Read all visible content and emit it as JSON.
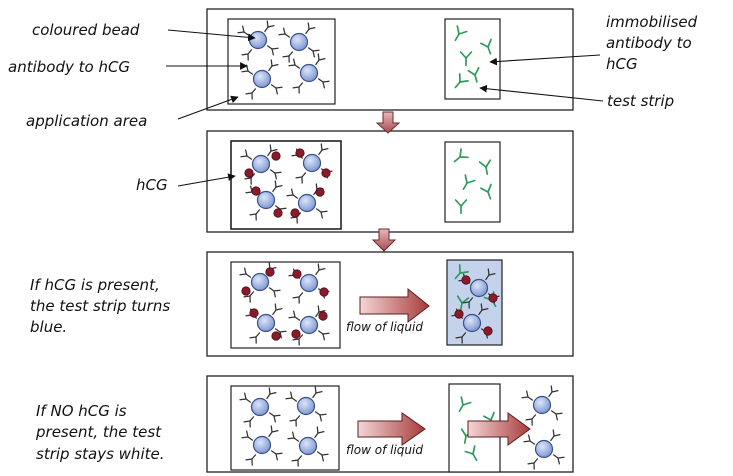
{
  "labels": {
    "coloured_bead": "coloured bead",
    "antibody_to_hcg": "antibody to hCG",
    "application_area": "application area",
    "immobilised_line1": "immobilised",
    "immobilised_line2": "antibody to",
    "immobilised_line3": "hCG",
    "test_strip": "test strip",
    "hcg": "hCG",
    "present_line1": "If hCG is present,",
    "present_line2": "the test strip turns",
    "present_line3": "blue.",
    "absent_line1": "If NO hCG is",
    "absent_line2": "present, the test",
    "absent_line3": "strip stays white.",
    "flow_of_liquid": "flow of liquid"
  },
  "colors": {
    "bead": "#8ea6dc",
    "bead_edge": "#3a4f8a",
    "hcg": "#8b1a2a",
    "immobilised_antibody": "#2e9a5a",
    "strip_positive": "#c4d2ec",
    "down_arrow": "#b5595d",
    "flow_arrow": "#b04848"
  },
  "icons": {
    "bead": "bead-with-antibodies-icon",
    "hcg": "hcg-molecule-icon",
    "antibody": "y-antibody-icon",
    "down_arrow": "down-arrow-icon",
    "flow_arrow": "flow-arrow-icon"
  }
}
